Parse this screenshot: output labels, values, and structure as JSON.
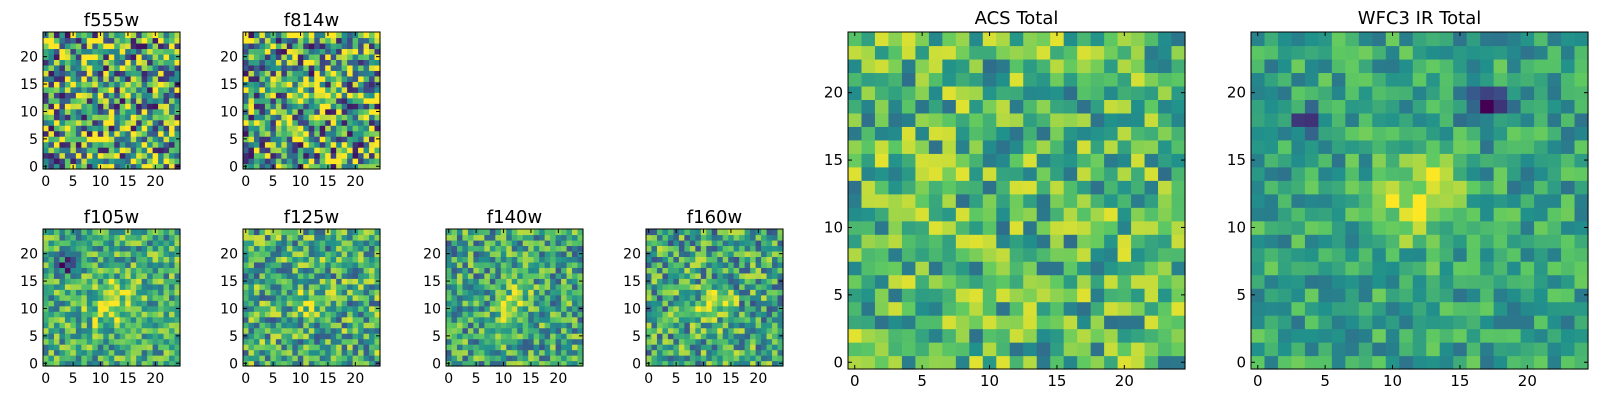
{
  "figure": {
    "colormap": "viridis",
    "colors": [
      "#440154",
      "#3b528b",
      "#21918c",
      "#5ec962",
      "#fde725"
    ]
  },
  "chart_data": [
    {
      "type": "heatmap",
      "title": "f555w",
      "grid": [
        25,
        25
      ],
      "xticks": [
        "0",
        "5",
        "10",
        "15",
        "20"
      ],
      "yticks": [
        "0",
        "5",
        "10",
        "15",
        "20"
      ],
      "xlim": [
        -0.5,
        24.5
      ],
      "ylim": [
        -0.5,
        24.5
      ],
      "mean_level": 0.6,
      "noise": 0.55,
      "sources": []
    },
    {
      "type": "heatmap",
      "title": "f814w",
      "grid": [
        25,
        25
      ],
      "xticks": [
        "0",
        "5",
        "10",
        "15",
        "20"
      ],
      "yticks": [
        "0",
        "5",
        "10",
        "15",
        "20"
      ],
      "xlim": [
        -0.5,
        24.5
      ],
      "ylim": [
        -0.5,
        24.5
      ],
      "mean_level": 0.6,
      "noise": 0.55,
      "sources": []
    },
    {
      "type": "heatmap",
      "title": "f105w",
      "grid": [
        25,
        25
      ],
      "xticks": [
        "0",
        "5",
        "10",
        "15",
        "20"
      ],
      "yticks": [
        "0",
        "5",
        "10",
        "15",
        "20"
      ],
      "xlim": [
        -0.5,
        24.5
      ],
      "ylim": [
        -0.5,
        24.5
      ],
      "mean_level": 0.62,
      "noise": 0.3,
      "sources": [
        {
          "x": 12,
          "y": 11,
          "amplitude": 0.3,
          "sigma": 3
        },
        {
          "x": 4,
          "y": 18,
          "amplitude": -0.55,
          "sigma": 1.2
        }
      ]
    },
    {
      "type": "heatmap",
      "title": "f125w",
      "grid": [
        25,
        25
      ],
      "xticks": [
        "0",
        "5",
        "10",
        "15",
        "20"
      ],
      "yticks": [
        "0",
        "5",
        "10",
        "15",
        "20"
      ],
      "xlim": [
        -0.5,
        24.5
      ],
      "ylim": [
        -0.5,
        24.5
      ],
      "mean_level": 0.6,
      "noise": 0.35,
      "sources": [
        {
          "x": 12,
          "y": 11,
          "amplitude": 0.2,
          "sigma": 2.5
        }
      ]
    },
    {
      "type": "heatmap",
      "title": "f140w",
      "grid": [
        25,
        25
      ],
      "xticks": [
        "0",
        "5",
        "10",
        "15",
        "20"
      ],
      "yticks": [
        "0",
        "5",
        "10",
        "15",
        "20"
      ],
      "xlim": [
        -0.5,
        24.5
      ],
      "ylim": [
        -0.5,
        24.5
      ],
      "mean_level": 0.58,
      "noise": 0.32,
      "sources": [
        {
          "x": 12,
          "y": 11,
          "amplitude": 0.3,
          "sigma": 2.5
        }
      ]
    },
    {
      "type": "heatmap",
      "title": "f160w",
      "grid": [
        25,
        25
      ],
      "xticks": [
        "0",
        "5",
        "10",
        "15",
        "20"
      ],
      "yticks": [
        "0",
        "5",
        "10",
        "15",
        "20"
      ],
      "xlim": [
        -0.5,
        24.5
      ],
      "ylim": [
        -0.5,
        24.5
      ],
      "mean_level": 0.58,
      "noise": 0.34,
      "sources": [
        {
          "x": 12,
          "y": 11,
          "amplitude": 0.32,
          "sigma": 2.2
        }
      ]
    },
    {
      "type": "heatmap",
      "title": "ACS Total",
      "grid": [
        25,
        25
      ],
      "xticks": [
        "0",
        "5",
        "10",
        "15",
        "20"
      ],
      "yticks": [
        "0",
        "5",
        "10",
        "15",
        "20"
      ],
      "xlim": [
        -0.5,
        24.5
      ],
      "ylim": [
        -0.5,
        24.5
      ],
      "mean_level": 0.66,
      "noise": 0.3,
      "sources": []
    },
    {
      "type": "heatmap",
      "title": "WFC3 IR Total",
      "grid": [
        25,
        25
      ],
      "xticks": [
        "0",
        "5",
        "10",
        "15",
        "20"
      ],
      "yticks": [
        "0",
        "5",
        "10",
        "15",
        "20"
      ],
      "xlim": [
        -0.5,
        24.5
      ],
      "ylim": [
        -0.5,
        24.5
      ],
      "mean_level": 0.58,
      "noise": 0.2,
      "sources": [
        {
          "x": 12,
          "y": 12,
          "amplitude": 0.4,
          "sigma": 2.2
        },
        {
          "x": 17,
          "y": 19,
          "amplitude": -0.6,
          "sigma": 0.9
        },
        {
          "x": 4,
          "y": 18,
          "amplitude": -0.5,
          "sigma": 0.8
        }
      ]
    }
  ]
}
